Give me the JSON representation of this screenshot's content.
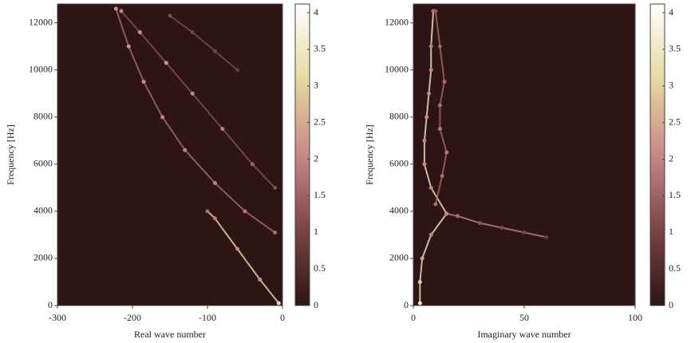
{
  "chart_data": [
    {
      "type": "heatmap",
      "xlabel": "Real wave number",
      "ylabel": "Frequency [Hz]",
      "xlim": [
        -300,
        0
      ],
      "ylim": [
        0,
        12800
      ],
      "xticks": [
        -300,
        -200,
        -100,
        0
      ],
      "yticks": [
        0,
        2000,
        4000,
        6000,
        8000,
        10000,
        12000
      ],
      "background": "#2e1414",
      "colormap": [
        "#2e1414",
        "#7a4444",
        "#c88888",
        "#e6d8a0",
        "#ffffff"
      ],
      "clim": [
        0,
        4.12
      ],
      "cticks": [
        0,
        0.5,
        1,
        1.5,
        2,
        2.5,
        3,
        3.5,
        4
      ],
      "series": [
        {
          "x": [
            -5,
            -30,
            -60,
            -90,
            -100
          ],
          "y": [
            100,
            1100,
            2400,
            3700,
            4000
          ],
          "values": [
            3.2,
            2.2,
            2,
            1.8,
            1.6
          ]
        },
        {
          "x": [
            -10,
            -50,
            -90,
            -130,
            -160,
            -185,
            -205,
            -222
          ],
          "y": [
            3100,
            4000,
            5200,
            6600,
            8000,
            9500,
            11000,
            12600
          ],
          "values": [
            1.6,
            1.8,
            1.9,
            2,
            2,
            2.1,
            2.2,
            2.2
          ]
        },
        {
          "x": [
            -10,
            -40,
            -80,
            -120,
            -155,
            -190,
            -215
          ],
          "y": [
            5000,
            6000,
            7500,
            9000,
            10300,
            11600,
            12500
          ],
          "values": [
            1.2,
            1.5,
            1.9,
            2.1,
            2.2,
            2.2,
            2
          ]
        },
        {
          "x": [
            -150,
            -120,
            -90,
            -60
          ],
          "y": [
            12300,
            11600,
            10800,
            10000
          ],
          "values": [
            1.1,
            1,
            1,
            0.9
          ]
        }
      ]
    },
    {
      "type": "heatmap",
      "xlabel": "Imaginary wave number",
      "ylabel": "Frequency [Hz]",
      "xlim": [
        0,
        100
      ],
      "ylim": [
        0,
        12800
      ],
      "xticks": [
        0,
        50,
        100
      ],
      "yticks": [
        0,
        2000,
        4000,
        6000,
        8000,
        10000,
        12000
      ],
      "background": "#2e1414",
      "colormap": [
        "#2e1414",
        "#7a4444",
        "#c88888",
        "#e6d8a0",
        "#ffffff"
      ],
      "clim": [
        0,
        4.12
      ],
      "cticks": [
        0,
        0.5,
        1,
        1.5,
        2,
        2.5,
        3,
        3.5,
        4
      ],
      "series": [
        {
          "x": [
            3,
            3,
            4,
            8,
            15,
            8,
            5,
            5,
            6,
            7,
            8,
            8,
            9
          ],
          "y": [
            100,
            1000,
            2000,
            3000,
            3900,
            5000,
            6000,
            7000,
            8000,
            9000,
            10000,
            11000,
            12500
          ],
          "values": [
            3.5,
            3,
            2.4,
            2,
            2.2,
            2,
            2,
            2.1,
            2.1,
            2,
            2,
            1.9,
            1.8
          ]
        },
        {
          "x": [
            15,
            20,
            30,
            40,
            50,
            60
          ],
          "y": [
            3900,
            3800,
            3500,
            3300,
            3100,
            2900
          ],
          "values": [
            2,
            1.6,
            1.3,
            1.1,
            1,
            0.8
          ]
        },
        {
          "x": [
            10,
            13,
            15,
            12,
            12,
            14,
            12,
            10
          ],
          "y": [
            4300,
            5500,
            6500,
            7500,
            8500,
            9500,
            11000,
            12500
          ],
          "values": [
            1.6,
            1.7,
            1.8,
            1.8,
            1.7,
            1.6,
            1.5,
            1.4
          ]
        }
      ]
    }
  ]
}
